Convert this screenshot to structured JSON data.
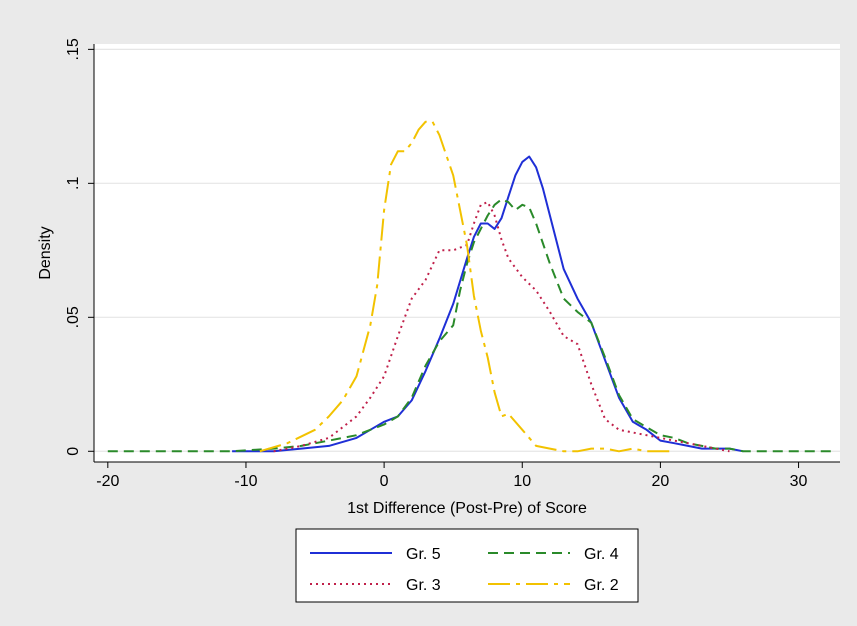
{
  "chart_data": {
    "type": "line",
    "title": "",
    "xlabel": "1st Difference (Post-Pre) of Score",
    "ylabel": "Density",
    "xlim": [
      -21,
      33
    ],
    "ylim": [
      -0.004,
      0.152
    ],
    "xticks": [
      -20,
      -10,
      0,
      10,
      20,
      30
    ],
    "xtick_labels": [
      "-20",
      "-10",
      "0",
      "10",
      "20",
      "30"
    ],
    "yticks": [
      0,
      0.05,
      0.1,
      0.15
    ],
    "ytick_labels": [
      "0",
      ".05",
      ".1",
      ".15"
    ],
    "grid": true,
    "legend_position": "bottom",
    "series": [
      {
        "name": "Gr. 5",
        "color": "#1f2fd6",
        "dash": "solid",
        "x": [
          -11,
          -8,
          -6,
          -4,
          -2,
          -1,
          0,
          1,
          2,
          3,
          4,
          5,
          6,
          6.5,
          7,
          7.5,
          8,
          8.5,
          9,
          9.5,
          10,
          10.5,
          11,
          11.5,
          12,
          13,
          14,
          15,
          16,
          17,
          18,
          19,
          20,
          21,
          22,
          23,
          24,
          25,
          26
        ],
        "y": [
          0,
          0,
          0.001,
          0.002,
          0.005,
          0.008,
          0.011,
          0.013,
          0.019,
          0.03,
          0.042,
          0.055,
          0.072,
          0.08,
          0.085,
          0.085,
          0.083,
          0.087,
          0.095,
          0.103,
          0.108,
          0.11,
          0.106,
          0.098,
          0.088,
          0.068,
          0.057,
          0.048,
          0.034,
          0.02,
          0.011,
          0.008,
          0.004,
          0.003,
          0.002,
          0.001,
          0.001,
          0.001,
          0
        ]
      },
      {
        "name": "Gr. 4",
        "color": "#2a8a2a",
        "dash": "10,6",
        "x": [
          -20,
          -17,
          -14,
          -11,
          -8,
          -6,
          -4,
          -2,
          -1,
          0,
          1,
          2,
          3,
          4,
          5,
          5.5,
          6,
          6.5,
          7,
          7.5,
          8,
          8.5,
          9,
          9.5,
          10,
          10.5,
          11,
          12,
          13,
          14,
          15,
          16,
          17,
          18,
          19,
          20,
          21,
          22,
          23,
          24,
          25,
          26,
          28,
          30,
          32.5
        ],
        "y": [
          0,
          0,
          0,
          0,
          0.001,
          0.002,
          0.004,
          0.006,
          0.008,
          0.01,
          0.013,
          0.02,
          0.032,
          0.041,
          0.047,
          0.06,
          0.07,
          0.078,
          0.083,
          0.088,
          0.092,
          0.094,
          0.093,
          0.09,
          0.092,
          0.091,
          0.085,
          0.07,
          0.057,
          0.052,
          0.048,
          0.035,
          0.021,
          0.012,
          0.009,
          0.006,
          0.005,
          0.003,
          0.002,
          0.001,
          0.001,
          0,
          0,
          0,
          0
        ]
      },
      {
        "name": "Gr. 3",
        "color": "#c0204a",
        "dash": "2,4",
        "x": [
          -8,
          -6,
          -4,
          -3,
          -2,
          -1,
          0,
          1,
          2,
          3,
          4,
          5,
          6,
          6.5,
          7,
          7.5,
          8,
          8.5,
          9,
          10,
          11,
          12,
          13,
          14,
          15,
          16,
          17,
          18,
          19,
          20,
          21,
          22,
          23,
          24,
          25
        ],
        "y": [
          0,
          0.002,
          0.005,
          0.009,
          0.013,
          0.02,
          0.028,
          0.043,
          0.057,
          0.064,
          0.075,
          0.075,
          0.077,
          0.085,
          0.092,
          0.093,
          0.088,
          0.079,
          0.072,
          0.065,
          0.06,
          0.052,
          0.043,
          0.04,
          0.025,
          0.012,
          0.008,
          0.007,
          0.006,
          0.005,
          0.004,
          0.003,
          0.002,
          0.001,
          0
        ]
      },
      {
        "name": "Gr. 2",
        "color": "#f2c200",
        "dash": "22,6,4,6",
        "x": [
          -9,
          -7,
          -5,
          -4,
          -3,
          -2,
          -1,
          -0.5,
          0,
          0.5,
          1,
          1.5,
          2,
          2.5,
          3,
          3.5,
          4,
          5,
          6,
          6.5,
          7,
          7.5,
          8,
          8.5,
          9,
          10,
          11,
          12,
          13,
          14,
          15,
          16,
          17,
          18,
          19,
          20,
          21
        ],
        "y": [
          0,
          0.003,
          0.008,
          0.013,
          0.019,
          0.028,
          0.047,
          0.062,
          0.09,
          0.107,
          0.112,
          0.112,
          0.115,
          0.12,
          0.123,
          0.123,
          0.118,
          0.103,
          0.077,
          0.058,
          0.045,
          0.035,
          0.022,
          0.013,
          0.014,
          0.008,
          0.002,
          0.001,
          0,
          0,
          0.001,
          0.001,
          0,
          0.001,
          0,
          0,
          0
        ]
      }
    ]
  }
}
